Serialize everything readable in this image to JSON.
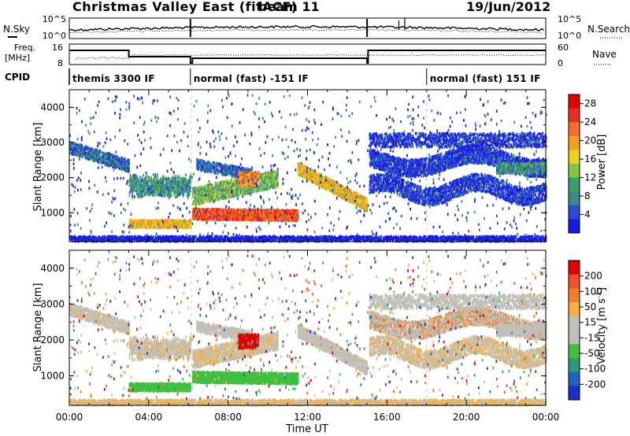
{
  "header": {
    "station": "Christmas Valley East (fitACF)",
    "beam": "beam 11",
    "date": "19/Jun/2012"
  },
  "top_panels": {
    "nsky_label": "N.Sky",
    "nsky_ticks": [
      "10^5",
      "10^0"
    ],
    "nsearch_label": "N.Search",
    "nsearch_ticks": [
      "10^5",
      "10^0"
    ],
    "freq_label_1": "Freq.",
    "freq_label_2": "[MHz]",
    "freq_ticks": [
      "16",
      "8"
    ],
    "nave_label": "Nave",
    "nave_ticks": [
      "60",
      "0"
    ],
    "cpid_label": "CPID",
    "cpid_segments": [
      {
        "label": "themis 3300 IF",
        "start_h": 0,
        "end_h": 6.1
      },
      {
        "label": "normal (fast) -151 IF",
        "start_h": 6.1,
        "end_h": 18
      },
      {
        "label": "normal (fast) 151 IF",
        "start_h": 18,
        "end_h": 24
      }
    ]
  },
  "colors": {
    "power_scale": [
      "#1a1ae6",
      "#2a4bd4",
      "#3a8a8c",
      "#3aa06a",
      "#88c540",
      "#f0d020",
      "#f5a020",
      "#f07030",
      "#e83020",
      "#e00000"
    ],
    "velocity_scale": [
      "#1a30c8",
      "#2860c0",
      "#2a9a7a",
      "#40c040",
      "#c0c0b8",
      "#c0c0b8",
      "#f5b040",
      "#f08030",
      "#f05030",
      "#e00000"
    ]
  },
  "chart_data": [
    {
      "type": "heatmap",
      "title": "Power",
      "xlabel": "",
      "ylabel": "Slant Range [km]",
      "xlim": [
        0,
        24
      ],
      "ylim": [
        180,
        4500
      ],
      "yticks": [
        "1000",
        "2000",
        "3000",
        "4000"
      ],
      "colorbar": {
        "label": "Power [dB]",
        "ticks": [
          "4",
          "8",
          "12",
          "16",
          "20",
          "24",
          "28"
        ],
        "range": [
          0,
          30
        ]
      }
    },
    {
      "type": "heatmap",
      "title": "Velocity",
      "xlabel": "Time UT",
      "ylabel": "Slant Range [km]",
      "xlim": [
        0,
        24
      ],
      "ylim": [
        180,
        4500
      ],
      "yticks": [
        "1000",
        "2000",
        "3000",
        "4000"
      ],
      "xticks": [
        "00:00",
        "04:00",
        "08:00",
        "12:00",
        "16:00",
        "20:00",
        "00:00"
      ],
      "colorbar": {
        "label": "Velocity [m s^-1]",
        "ticks": [
          "200",
          "100",
          "50",
          "15",
          "-15",
          "-50",
          "-100",
          "-200"
        ],
        "range": [
          -250,
          250
        ]
      }
    }
  ]
}
